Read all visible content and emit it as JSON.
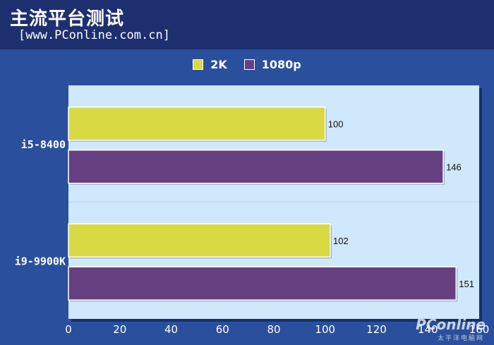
{
  "header": {
    "title": "主流平台测试",
    "subtitle": "[www.PConline.com.cn]"
  },
  "watermark": {
    "brand": "PConline",
    "tagline": "太平洋电脑网"
  },
  "colors": {
    "background": "#2a4f9c",
    "header": "#1d2f6e",
    "plot": "#cfe8fb",
    "series_2k": "#d9d943",
    "series_1080p": "#663f80"
  },
  "chart_data": {
    "type": "bar",
    "orientation": "horizontal",
    "categories": [
      "i5-8400",
      "i9-9900K"
    ],
    "series": [
      {
        "name": "2K",
        "values": [
          100,
          102
        ]
      },
      {
        "name": "1080p",
        "values": [
          146,
          151
        ]
      }
    ],
    "xlim": [
      0,
      160
    ],
    "xticks": [
      0,
      20,
      40,
      60,
      80,
      100,
      120,
      140,
      160
    ],
    "grid": false,
    "legend": "top-center",
    "data_labels": true
  }
}
